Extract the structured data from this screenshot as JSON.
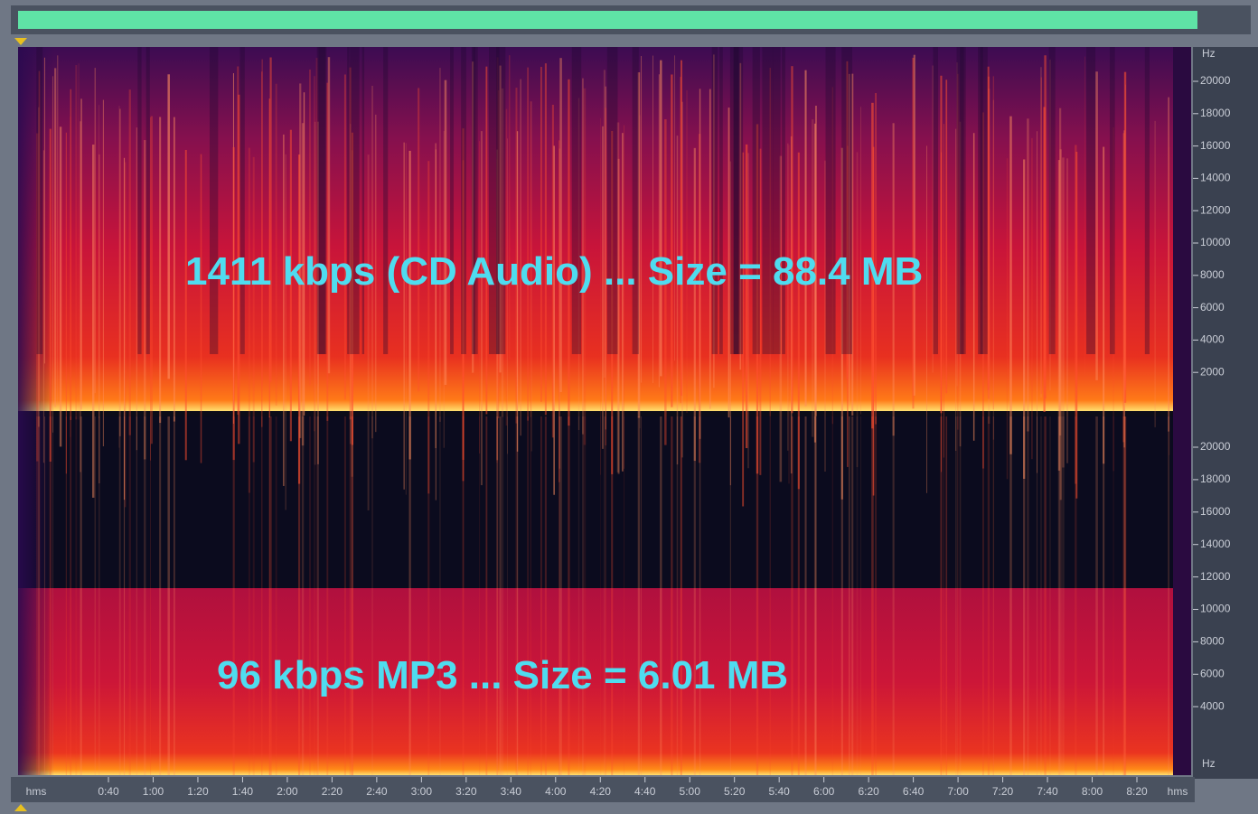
{
  "top_panel": {
    "annotation": "1411 kbps (CD Audio) ... Size = 88.4 MB",
    "frequency_unit": "Hz",
    "frequency_labels": [
      "20000",
      "18000",
      "16000",
      "14000",
      "12000",
      "10000",
      "8000",
      "6000",
      "4000",
      "2000"
    ]
  },
  "bottom_panel": {
    "annotation": "96 kbps MP3 ... Size = 6.01 MB",
    "frequency_unit": "Hz",
    "frequency_labels": [
      "20000",
      "18000",
      "16000",
      "14000",
      "12000",
      "10000",
      "8000",
      "6000",
      "4000"
    ]
  },
  "time_axis": {
    "start_unit": "hms",
    "end_unit": "hms",
    "labels": [
      "0:40",
      "1:00",
      "1:20",
      "1:40",
      "2:00",
      "2:20",
      "2:40",
      "3:00",
      "3:20",
      "3:40",
      "4:00",
      "4:20",
      "4:40",
      "5:00",
      "5:20",
      "5:40",
      "6:00",
      "6:20",
      "6:40",
      "7:00",
      "7:20",
      "7:40",
      "8:00",
      "8:20"
    ]
  }
}
